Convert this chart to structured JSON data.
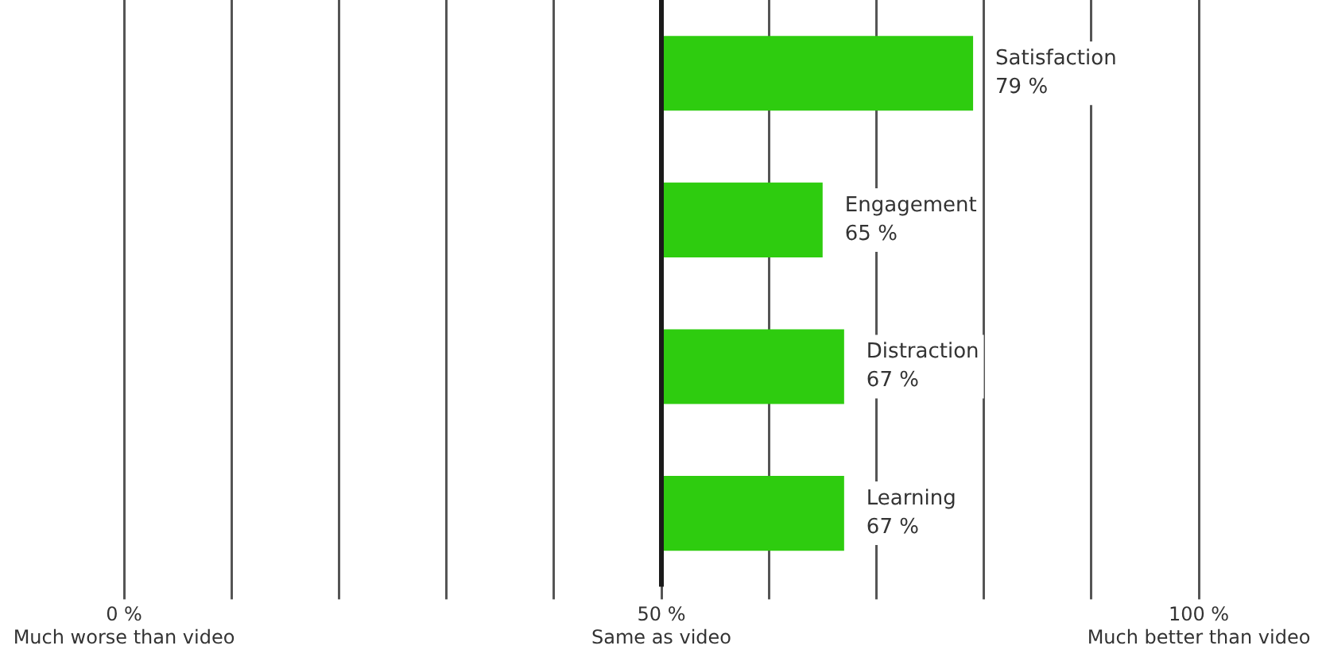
{
  "chart_data": {
    "type": "bar",
    "orientation": "horizontal",
    "categories": [
      "Satisfaction",
      "Engagement",
      "Distraction",
      "Learning"
    ],
    "base": [
      50,
      50,
      50,
      50
    ],
    "values": [
      29,
      15,
      17,
      17
    ],
    "value_labels": [
      "79 %",
      "65 %",
      "67 %",
      "67 %"
    ],
    "color": "#2ecc0f",
    "xlim": [
      0,
      100
    ],
    "xticks": [
      {
        "value": 0,
        "label": "0 %\nMuch worse than video"
      },
      {
        "value": 10,
        "label": null
      },
      {
        "value": 20,
        "label": null
      },
      {
        "value": 30,
        "label": null
      },
      {
        "value": 40,
        "label": null
      },
      {
        "value": 50,
        "label": "50 %\nSame as video"
      },
      {
        "value": 60,
        "label": null
      },
      {
        "value": 70,
        "label": null
      },
      {
        "value": 80,
        "label": null
      },
      {
        "value": 90,
        "label": null
      },
      {
        "value": 100,
        "label": "100 %\nMuch better than video"
      }
    ],
    "ref_lines": [
      {
        "axis": "x",
        "value": 50,
        "color": "#1a1a1a"
      }
    ],
    "grid": "x",
    "tick_labels": "x",
    "legend": false
  }
}
